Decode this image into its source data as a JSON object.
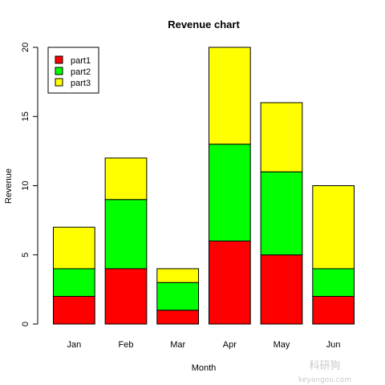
{
  "chart_data": {
    "type": "bar",
    "stacked": true,
    "title": "Revenue chart",
    "xlabel": "Month",
    "ylabel": "Revenue",
    "ylim": [
      0,
      20
    ],
    "yticks": [
      0,
      5,
      10,
      15,
      20
    ],
    "categories": [
      "Jan",
      "Feb",
      "Mar",
      "Apr",
      "May",
      "Jun"
    ],
    "series": [
      {
        "name": "part1",
        "color": "#ff0000",
        "values": [
          2,
          4,
          1,
          6,
          5,
          2
        ]
      },
      {
        "name": "part2",
        "color": "#00ff00",
        "values": [
          2,
          5,
          2,
          7,
          6,
          2
        ]
      },
      {
        "name": "part3",
        "color": "#ffff00",
        "values": [
          3,
          3,
          1,
          7,
          5,
          6
        ]
      }
    ],
    "legend_position": "top-left",
    "grid": false
  },
  "watermark": {
    "text": "keyangou.com",
    "logo_text": "科研狗"
  }
}
